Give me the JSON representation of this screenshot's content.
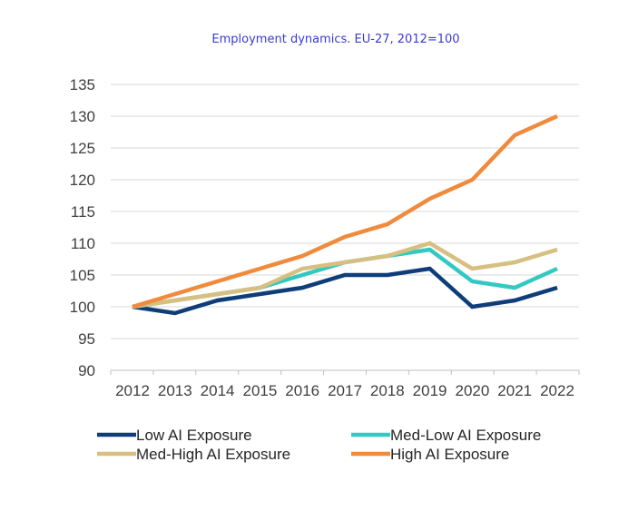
{
  "chart_data": {
    "type": "line",
    "title": "Employment dynamics. EU-27, 2012=100",
    "xlabel": "",
    "ylabel": "",
    "x": [
      "2012",
      "2013",
      "2014",
      "2015",
      "2016",
      "2017",
      "2018",
      "2019",
      "2020",
      "2021",
      "2022"
    ],
    "ylim": [
      90,
      135
    ],
    "yticks": [
      90,
      95,
      100,
      105,
      110,
      115,
      120,
      125,
      130,
      135
    ],
    "grid": true,
    "legend_position": "bottom",
    "series": [
      {
        "name": "Low AI Exposure",
        "color": "#0e3d7a",
        "values": [
          100,
          99,
          101,
          102,
          103,
          105,
          105,
          106,
          100,
          101,
          103
        ]
      },
      {
        "name": "Med-Low AI Exposure",
        "color": "#33c9c2",
        "values": [
          100,
          101,
          102,
          103,
          105,
          107,
          108,
          109,
          104,
          103,
          106
        ]
      },
      {
        "name": "Med-High AI Exposure",
        "color": "#d7bf80",
        "values": [
          100,
          101,
          102,
          103,
          106,
          107,
          108,
          110,
          106,
          107,
          109
        ]
      },
      {
        "name": "High AI Exposure",
        "color": "#f08a3c",
        "values": [
          100,
          102,
          104,
          106,
          108,
          111,
          113,
          117,
          120,
          127,
          130
        ]
      }
    ]
  }
}
